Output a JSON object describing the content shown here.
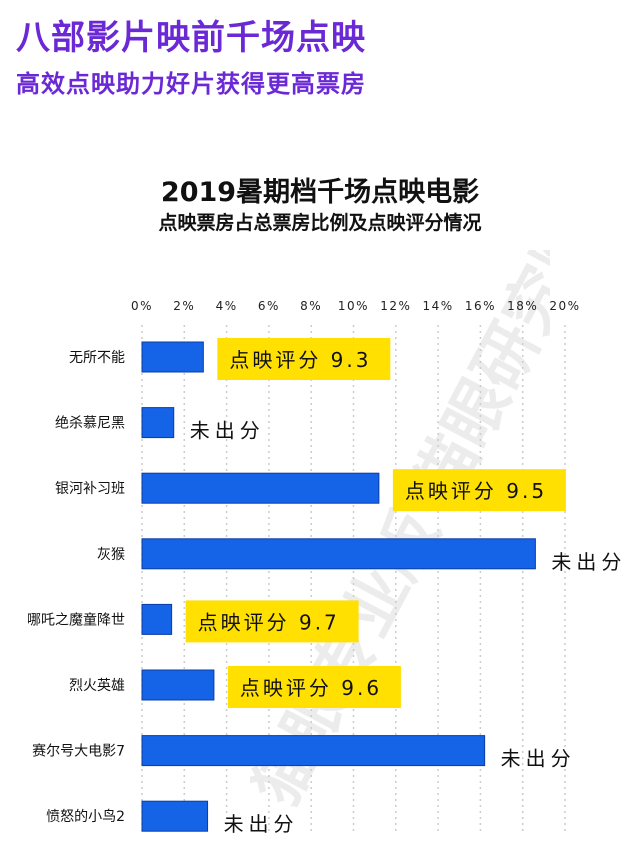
{
  "header": {
    "headline": "八部影片映前千场点映",
    "subheadline": "高效点映助力好片获得更高票房"
  },
  "watermark": {
    "text": "猫眼专业版 猫眼研究院"
  },
  "colors": {
    "brand_purple": "#6b29d6",
    "bar_blue": "#1563e6",
    "label_yellow": "#ffe000",
    "grid": "#cccccc"
  },
  "chart_data": {
    "type": "bar",
    "orientation": "horizontal",
    "title": "2019暑期档千场点映电影",
    "subtitle": "点映票房占总票房比例及点映评分情况",
    "xlim": [
      0,
      20
    ],
    "x_ticks": [
      "0%",
      "2%",
      "4%",
      "6%",
      "8%",
      "10%",
      "12%",
      "14%",
      "16%",
      "18%",
      "20%"
    ],
    "categories": [
      "无所不能",
      "绝杀慕尼黑",
      "银河补习班",
      "灰猴",
      "哪吒之魔童降世",
      "烈火英雄",
      "赛尔号大电影7",
      "愤怒的小鸟2"
    ],
    "values": [
      2.9,
      1.5,
      11.2,
      18.6,
      1.4,
      3.4,
      16.2,
      3.1
    ],
    "annotations": [
      {
        "text": "点映评分 9.3",
        "highlight": true
      },
      {
        "text": "未出分",
        "highlight": false
      },
      {
        "text": "点映评分 9.5",
        "highlight": true
      },
      {
        "text": "未出分",
        "highlight": false
      },
      {
        "text": "点映评分 9.7",
        "highlight": true
      },
      {
        "text": "点映评分 9.6",
        "highlight": true
      },
      {
        "text": "未出分",
        "highlight": false
      },
      {
        "text": "未出分",
        "highlight": false
      }
    ],
    "grid": true,
    "legend": "none"
  }
}
